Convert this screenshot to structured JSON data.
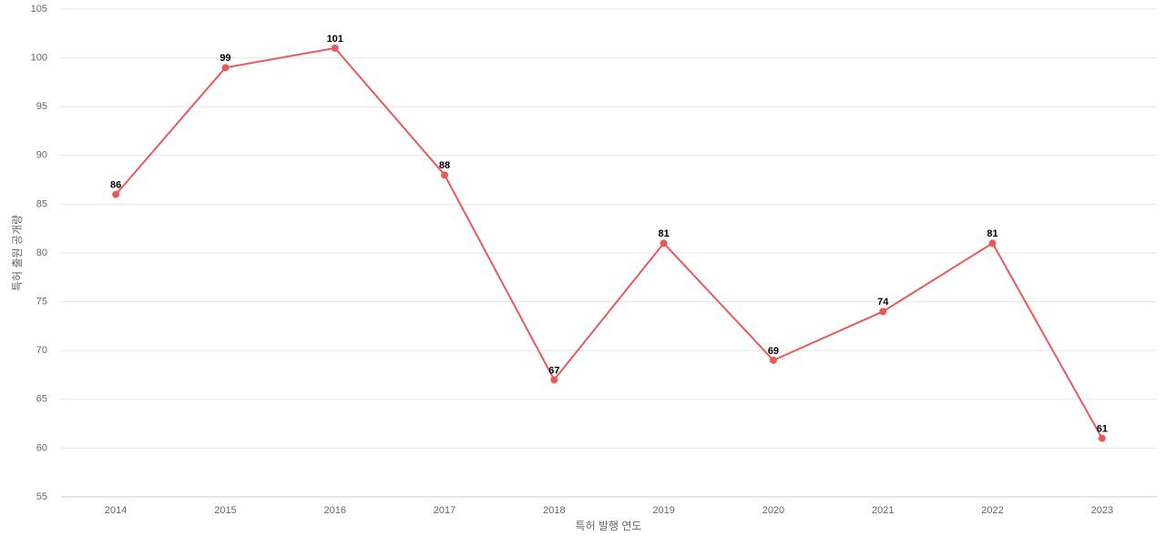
{
  "chart_data": {
    "type": "line",
    "x_label": "특허 발행 연도",
    "y_label": "특허 출원 공개량",
    "categories": [
      "2014",
      "2015",
      "2016",
      "2017",
      "2018",
      "2019",
      "2020",
      "2021",
      "2022",
      "2023"
    ],
    "series": [
      {
        "color": "#e85a5a",
        "values": [
          86,
          99,
          101,
          88,
          67,
          81,
          69,
          74,
          81,
          61
        ]
      }
    ],
    "ylim": [
      55,
      105
    ],
    "yticks": [
      55,
      60,
      65,
      70,
      75,
      80,
      85,
      90,
      95,
      100,
      105
    ],
    "grid": true,
    "data_labels": true
  }
}
